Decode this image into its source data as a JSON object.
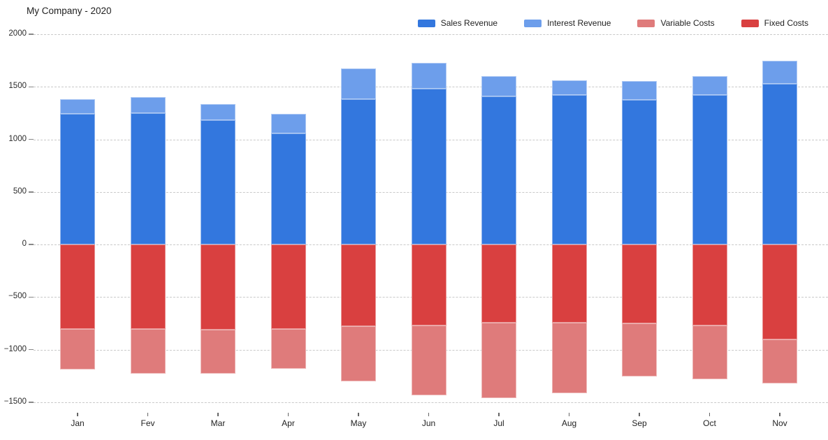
{
  "title": "My Company - 2020",
  "legend": [
    {
      "label": "Sales Revenue",
      "color": "#3377DE"
    },
    {
      "label": "Interest Revenue",
      "color": "#6D9EEB"
    },
    {
      "label": "Variable Costs",
      "color": "#DF7B7B"
    },
    {
      "label": "Fixed Costs",
      "color": "#D94040"
    }
  ],
  "colors": {
    "grid": "#c9c9c9",
    "background": "#ffffff",
    "text": "#222222"
  },
  "chart_data": {
    "type": "bar",
    "stacked": true,
    "title": "My Company - 2020",
    "categories": [
      "Jan",
      "Fev",
      "Mar",
      "Apr",
      "May",
      "Jun",
      "Jul",
      "Aug",
      "Sep",
      "Oct",
      "Nov"
    ],
    "series": [
      {
        "name": "Sales Revenue",
        "color": "#3377DE",
        "values": [
          1240,
          1250,
          1180,
          1060,
          1385,
          1485,
          1410,
          1420,
          1375,
          1420,
          1530
        ]
      },
      {
        "name": "Interest Revenue",
        "color": "#6D9EEB",
        "values": [
          145,
          155,
          155,
          180,
          290,
          245,
          190,
          140,
          180,
          180,
          220
        ]
      },
      {
        "name": "Variable Costs",
        "color": "#DF7B7B",
        "values": [
          -390,
          -420,
          -420,
          -375,
          -525,
          -665,
          -715,
          -675,
          -505,
          -510,
          -415
        ]
      },
      {
        "name": "Fixed Costs",
        "color": "#D94040",
        "values": [
          -800,
          -805,
          -810,
          -805,
          -775,
          -770,
          -745,
          -740,
          -750,
          -770,
          -905
        ]
      }
    ],
    "positive_stack_order": [
      "Sales Revenue",
      "Interest Revenue"
    ],
    "negative_stack_order": [
      "Fixed Costs",
      "Variable Costs"
    ],
    "xlabel": "",
    "ylabel": "",
    "yticks": [
      2000,
      1500,
      1000,
      500,
      0,
      -500,
      -1000,
      -1500
    ],
    "ylim": [
      -1500,
      2000
    ],
    "grid": "horizontal-dashed",
    "legend_position": "top-right"
  }
}
